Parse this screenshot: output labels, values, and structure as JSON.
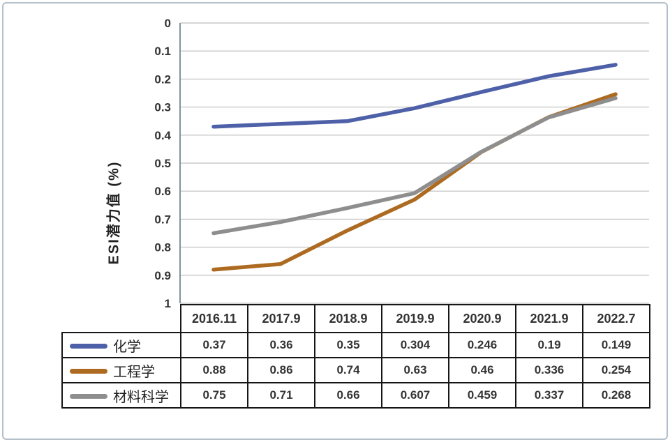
{
  "chart_data": {
    "type": "line",
    "title": "",
    "ylabel": "ESI潜力值 (%)",
    "xlabel": "",
    "categories": [
      "2016.11",
      "2017.9",
      "2018.9",
      "2019.9",
      "2020.9",
      "2021.9",
      "2022.7"
    ],
    "series": [
      {
        "name": "化学",
        "color": "#4e61a8",
        "values": [
          0.37,
          0.36,
          0.35,
          0.304,
          0.246,
          0.19,
          0.149
        ]
      },
      {
        "name": "工程学",
        "color": "#ad6b21",
        "values": [
          0.88,
          0.86,
          0.74,
          0.63,
          0.46,
          0.336,
          0.254
        ]
      },
      {
        "name": "材料科学",
        "color": "#8e8e8e",
        "values": [
          0.75,
          0.71,
          0.66,
          0.607,
          0.459,
          0.337,
          0.268
        ]
      }
    ],
    "y_ticks": [
      0,
      0.1,
      0.2,
      0.3,
      0.4,
      0.5,
      0.6,
      0.7,
      0.8,
      0.9,
      1
    ],
    "ylim": [
      0,
      1
    ],
    "y_axis_inverted": true,
    "grid": true,
    "legend_position": "table-left"
  },
  "colors": {
    "grid_line": "#c9c9c9",
    "axis_line": "#7f93a0",
    "tick_text": "#333333",
    "table_border": "#161616",
    "frame_border": "#b3bfc9",
    "background": "#ffffff"
  }
}
